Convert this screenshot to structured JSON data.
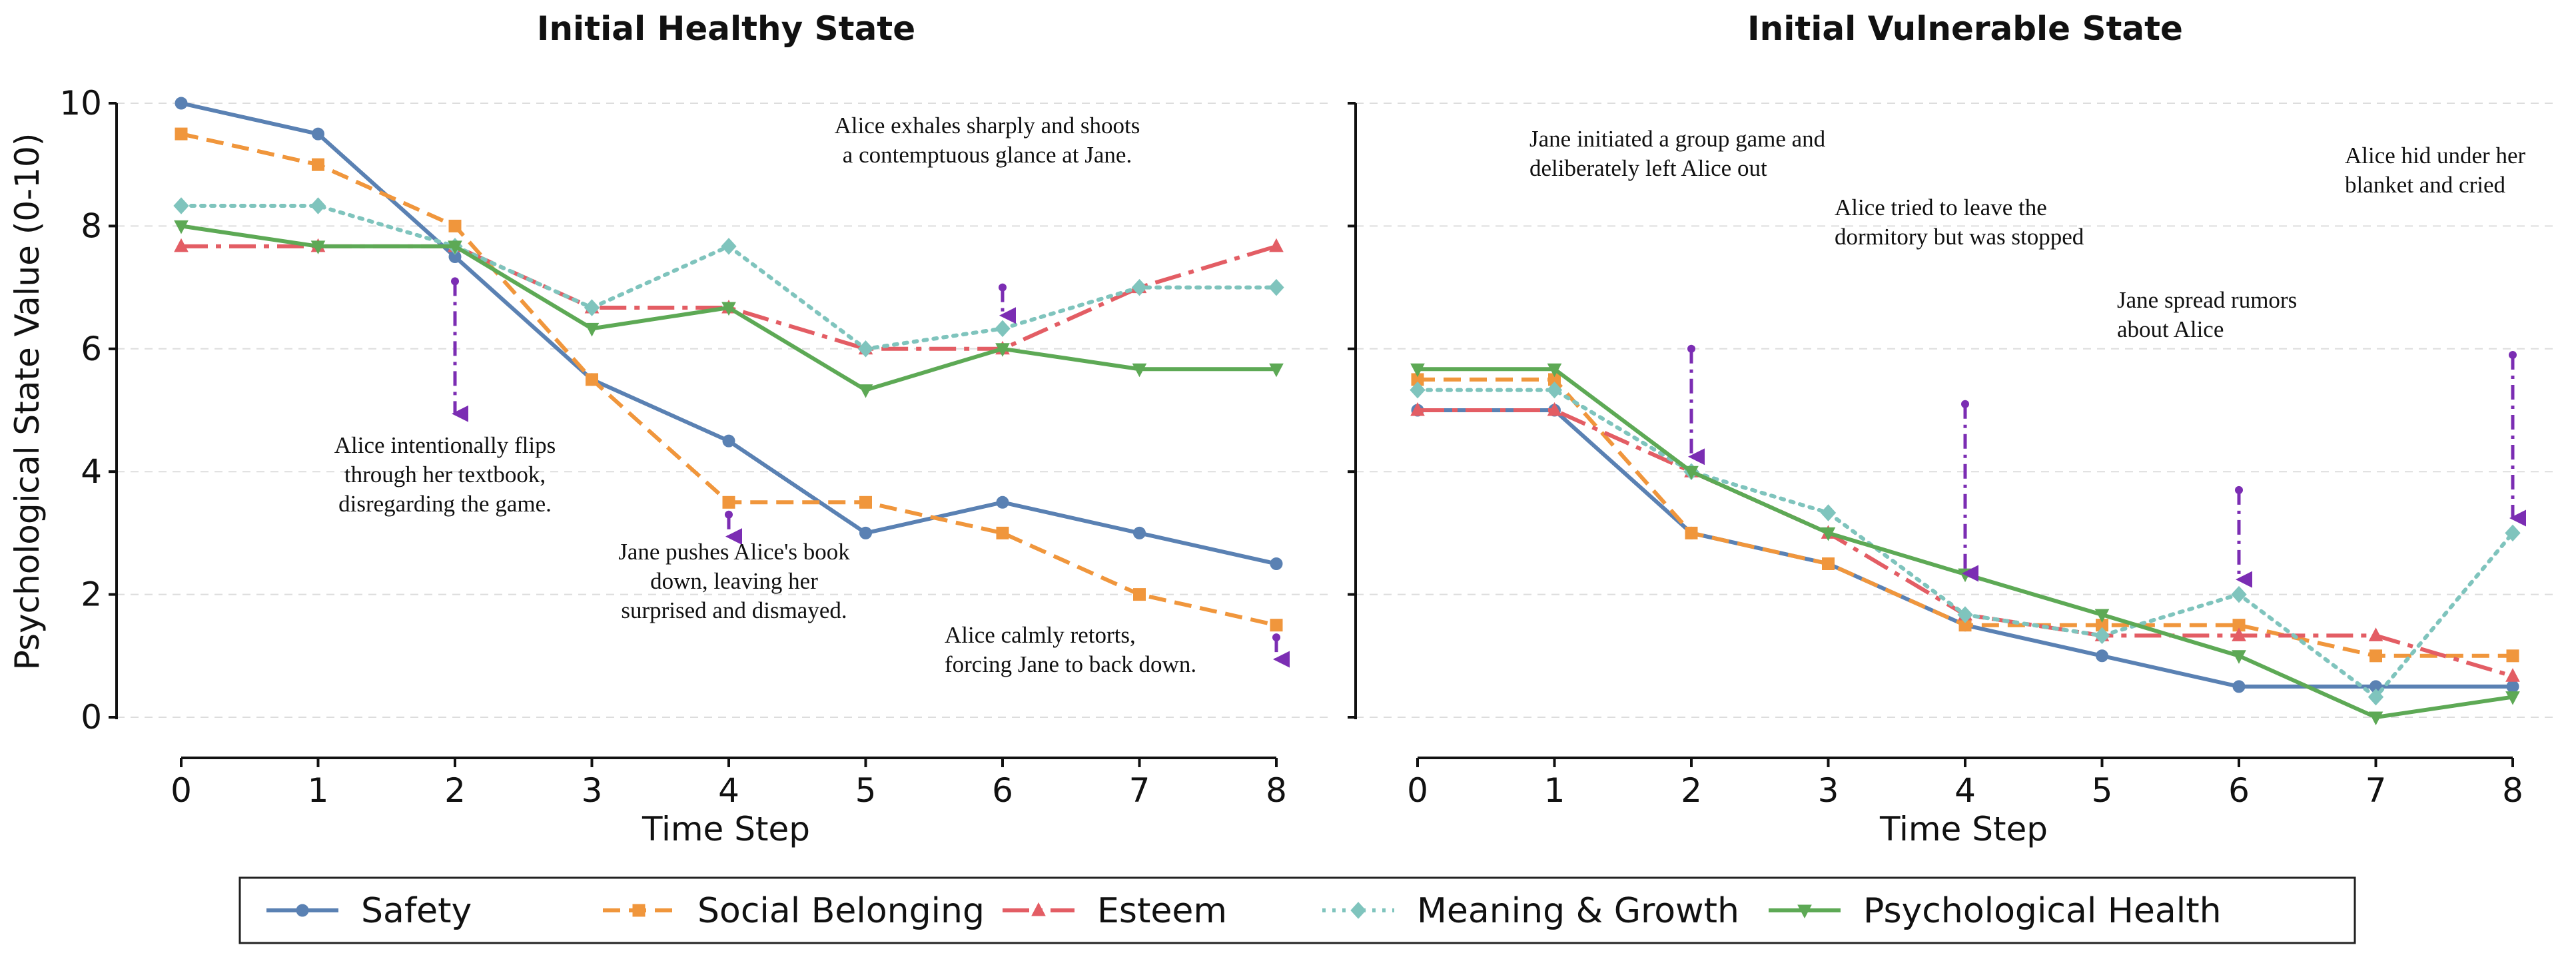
{
  "ylabel": "Psychological State Value (0-10)",
  "legend": [
    "Safety",
    "Social Belonging",
    "Esteem",
    "Meaning & Growth",
    "Psychological Health"
  ],
  "colors": {
    "Safety": "#5a81b3",
    "Social Belonging": "#f0963c",
    "Esteem": "#e35d64",
    "Meaning & Growth": "#7fc4bd",
    "Psychological Health": "#5da955",
    "arrow": "#7b2db3"
  },
  "chart_data": [
    {
      "type": "line",
      "title": "Initial Healthy State",
      "xlabel": "Time Step",
      "ylabel": "Psychological State Value (0-10)",
      "x": [
        0,
        1,
        2,
        3,
        4,
        5,
        6,
        7,
        8
      ],
      "xlim": [
        -0.5,
        8.3
      ],
      "ylim": [
        -0.7,
        10.5
      ],
      "yticks": [
        0,
        2,
        4,
        6,
        8,
        10
      ],
      "grid": "horizontal dashed",
      "series": [
        {
          "name": "Safety",
          "values": [
            10,
            9.5,
            7.5,
            5.5,
            4.5,
            3.0,
            3.5,
            3.0,
            2.5
          ]
        },
        {
          "name": "Social Belonging",
          "values": [
            9.5,
            9.0,
            8.0,
            5.5,
            3.5,
            3.5,
            3.0,
            2.0,
            1.5
          ]
        },
        {
          "name": "Esteem",
          "values": [
            7.67,
            7.67,
            7.67,
            6.67,
            6.67,
            6.0,
            6.0,
            7.0,
            7.67
          ]
        },
        {
          "name": "Meaning & Growth",
          "values": [
            8.33,
            8.33,
            7.67,
            6.67,
            7.67,
            6.0,
            6.33,
            7.0,
            7.0
          ]
        },
        {
          "name": "Psychological Health",
          "values": [
            8.0,
            7.67,
            7.67,
            6.33,
            6.67,
            5.33,
            6.0,
            5.67,
            5.67
          ]
        }
      ],
      "events": [
        {
          "x": 2,
          "arrow_from": 7.1,
          "arrow_to": 4.9,
          "text": [
            "Alice intentionally flips",
            "through her textbook,",
            "disregarding the game."
          ]
        },
        {
          "x": 4,
          "arrow_from": 3.3,
          "arrow_to": 2.9,
          "text": [
            "Jane pushes Alice's book",
            "down, leaving her",
            "surprised and dismayed."
          ]
        },
        {
          "x": 6,
          "arrow_from": 7.0,
          "arrow_to": 6.5,
          "text": [
            "Alice exhales sharply and shoots",
            "a contemptuous glance at Jane."
          ]
        },
        {
          "x": 8,
          "arrow_from": 1.3,
          "arrow_to": 0.9,
          "text": [
            "Alice calmly retorts,",
            "forcing Jane to back down."
          ]
        }
      ]
    },
    {
      "type": "line",
      "title": "Initial Vulnerable State",
      "xlabel": "Time Step",
      "x": [
        0,
        1,
        2,
        3,
        4,
        5,
        6,
        7,
        8
      ],
      "xlim": [
        -0.5,
        8.3
      ],
      "ylim": [
        -0.7,
        10.5
      ],
      "yticks": [
        0,
        2,
        4,
        6,
        8,
        10
      ],
      "grid": "horizontal dashed",
      "series": [
        {
          "name": "Safety",
          "values": [
            5.0,
            5.0,
            3.0,
            2.5,
            1.5,
            1.0,
            0.5,
            0.5,
            0.5
          ]
        },
        {
          "name": "Social Belonging",
          "values": [
            5.5,
            5.5,
            3.0,
            2.5,
            1.5,
            1.5,
            1.5,
            1.0,
            1.0
          ]
        },
        {
          "name": "Esteem",
          "values": [
            5.0,
            5.0,
            4.0,
            3.0,
            1.67,
            1.33,
            1.33,
            1.33,
            0.67
          ]
        },
        {
          "name": "Meaning & Growth",
          "values": [
            5.33,
            5.33,
            4.0,
            3.33,
            1.67,
            1.33,
            2.0,
            0.33,
            3.0
          ]
        },
        {
          "name": "Psychological Health",
          "values": [
            5.67,
            5.67,
            4.0,
            3.0,
            2.33,
            1.67,
            1.0,
            0.0,
            0.33
          ]
        }
      ],
      "events": [
        {
          "x": 2,
          "arrow_from": 6.0,
          "arrow_to": 4.2,
          "text": [
            "Jane initiated a group game and",
            "deliberately left Alice out"
          ]
        },
        {
          "x": 4,
          "arrow_from": 5.1,
          "arrow_to": 2.3,
          "text": [
            "Alice tried to leave the",
            "dormitory but was stopped"
          ]
        },
        {
          "x": 6,
          "arrow_from": 3.7,
          "arrow_to": 2.2,
          "text": [
            "Jane spread rumors",
            "about Alice"
          ]
        },
        {
          "x": 8,
          "arrow_from": 5.9,
          "arrow_to": 3.2,
          "text": [
            "Alice hid under her",
            "blanket and cried"
          ]
        }
      ]
    }
  ]
}
